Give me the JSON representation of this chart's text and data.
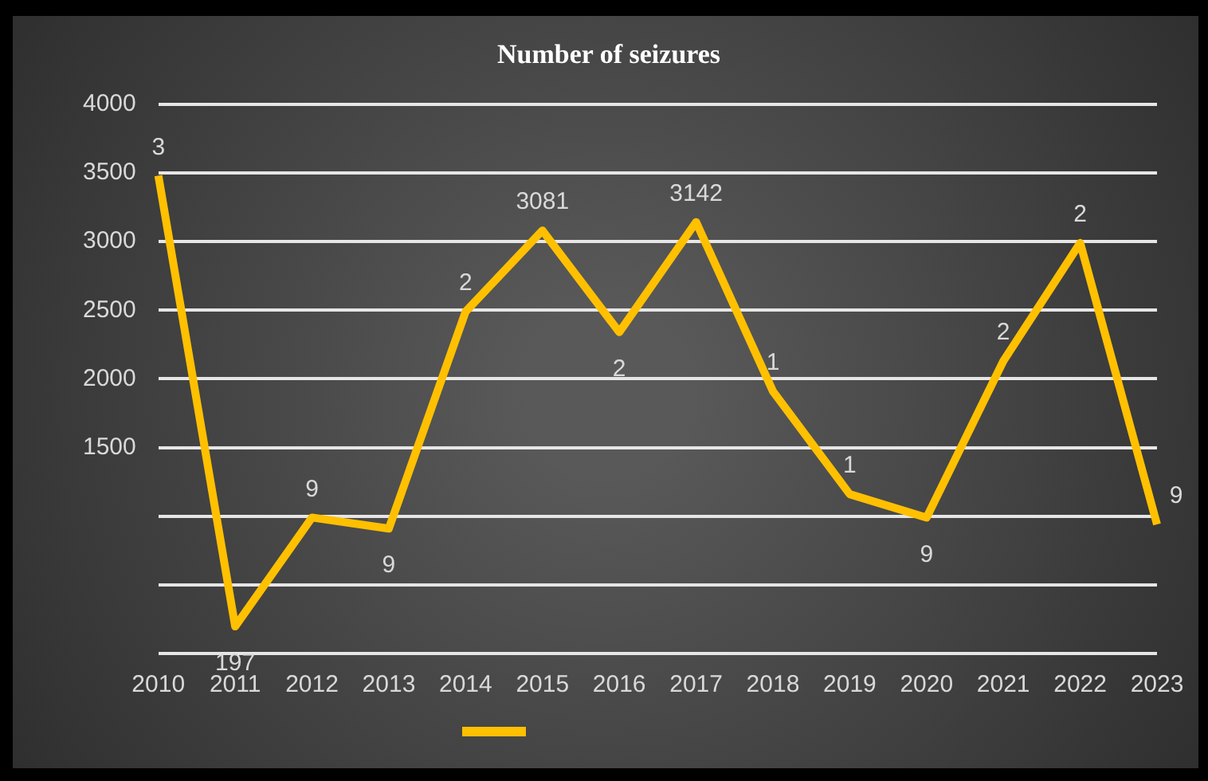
{
  "chart_data": {
    "type": "line",
    "title": "Number of seizures",
    "categories": [
      "2010",
      "2011",
      "2012",
      "2013",
      "2014",
      "2015",
      "2016",
      "2017",
      "2018",
      "2019",
      "2020",
      "2021",
      "2022",
      "2023"
    ],
    "series": [
      {
        "color": "#ffc000",
        "values": [
          3480,
          197,
          990,
          910,
          2490,
          3081,
          2340,
          3142,
          1910,
          1160,
          990,
          2130,
          2990,
          940
        ],
        "value_labels": [
          null,
          "197",
          null,
          null,
          null,
          "3081",
          null,
          "3142",
          null,
          null,
          null,
          null,
          null,
          null
        ]
      }
    ],
    "annotations": [
      {
        "text": "3",
        "x": "2010",
        "y": 3480
      },
      {
        "text": "9",
        "x": "2012",
        "y": 990
      },
      {
        "text": "9",
        "x": "2013",
        "y": 910
      },
      {
        "text": "2",
        "x": "2014",
        "y": 2490
      },
      {
        "text": "2",
        "x": "2016",
        "y": 2340
      },
      {
        "text": "1",
        "x": "2018",
        "y": 1910
      },
      {
        "text": "1",
        "x": "2019",
        "y": 1160
      },
      {
        "text": "9",
        "x": "2020",
        "y": 990
      },
      {
        "text": "2",
        "x": "2021",
        "y": 2130
      },
      {
        "text": "2",
        "x": "2022",
        "y": 2990
      },
      {
        "text": "9",
        "x": "2023",
        "y": 940
      }
    ],
    "ylim": [
      0,
      4000
    ],
    "yticks": [
      {
        "value": 0,
        "label": null
      },
      {
        "value": 500,
        "label": null
      },
      {
        "value": 1000,
        "label": null
      },
      1500,
      2000,
      2500,
      3000,
      3500,
      4000
    ],
    "grid": "y",
    "marker": "none",
    "line_style": "solid"
  }
}
